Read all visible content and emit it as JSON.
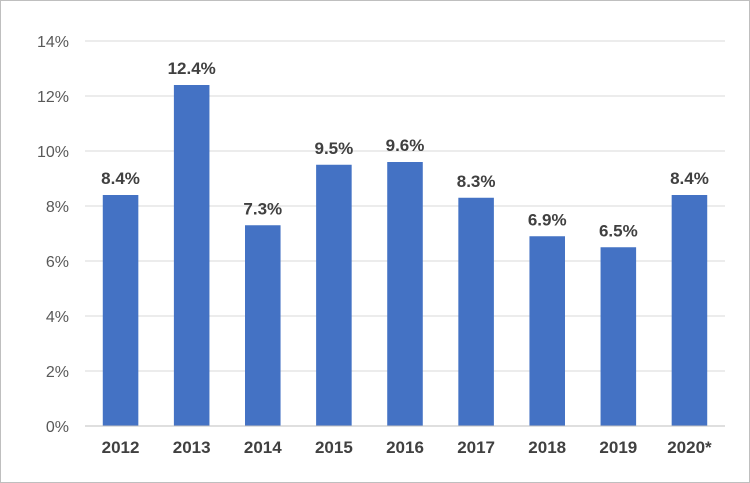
{
  "chart_data": {
    "type": "bar",
    "categories": [
      "2012",
      "2013",
      "2014",
      "2015",
      "2016",
      "2017",
      "2018",
      "2019",
      "2020*"
    ],
    "values": [
      8.4,
      12.4,
      7.3,
      9.5,
      9.6,
      8.3,
      6.9,
      6.5,
      8.4
    ],
    "data_labels": [
      "8.4%",
      "12.4%",
      "7.3%",
      "9.5%",
      "9.6%",
      "8.3%",
      "6.9%",
      "6.5%",
      "8.4%"
    ],
    "y_ticks": [
      0,
      2,
      4,
      6,
      8,
      10,
      12,
      14
    ],
    "y_tick_labels": [
      "0%",
      "2%",
      "4%",
      "6%",
      "8%",
      "10%",
      "12%",
      "14%"
    ],
    "ylim": [
      0,
      14
    ],
    "grid": true,
    "bar_color": "#4472c4"
  }
}
